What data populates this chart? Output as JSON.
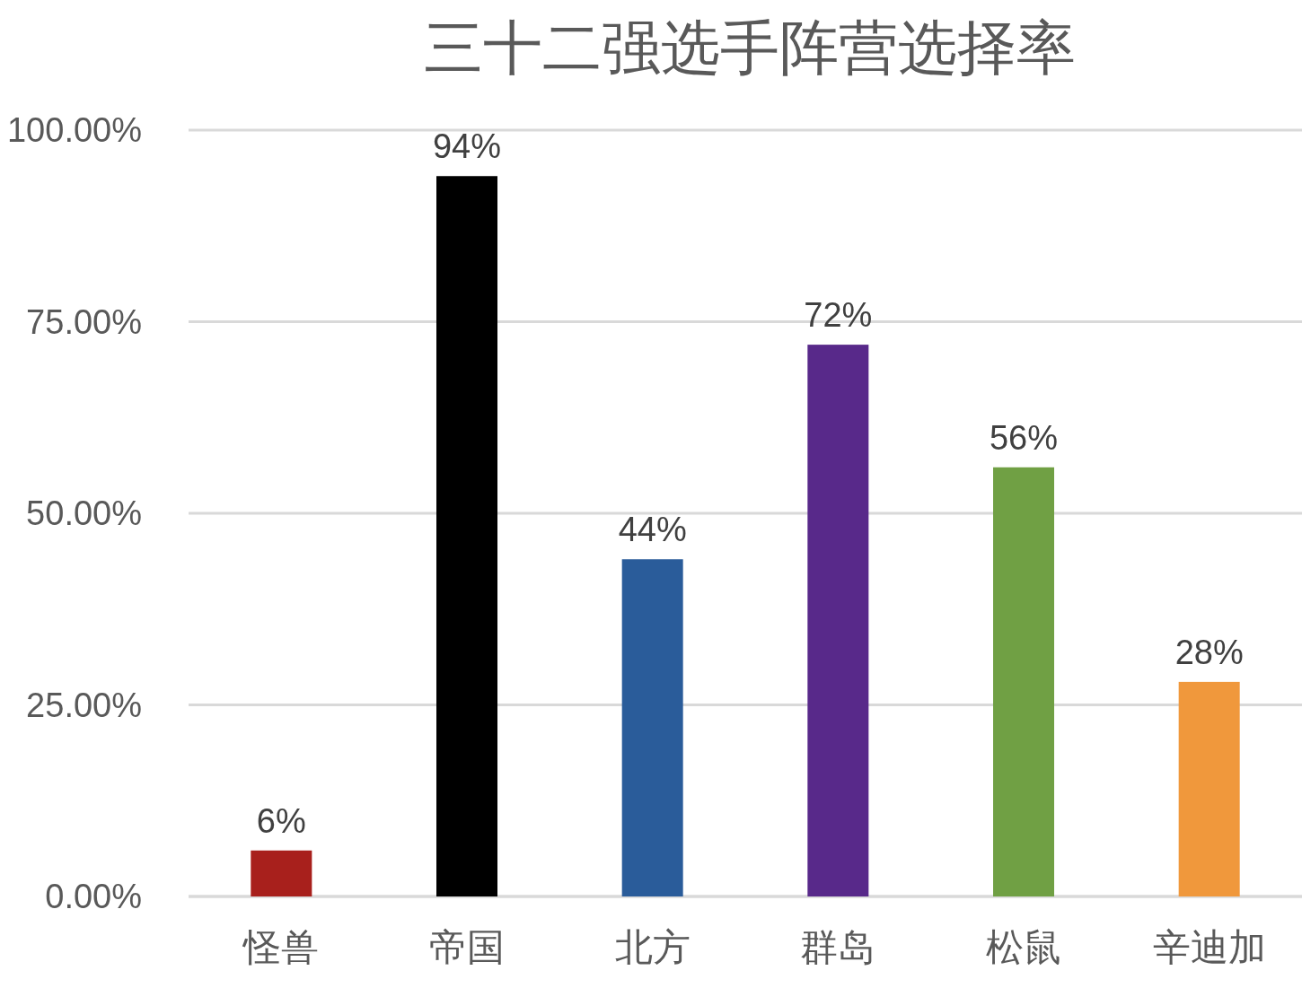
{
  "chart_data": {
    "type": "bar",
    "title": "三十二强选手阵营选择率",
    "categories": [
      "怪兽",
      "帝国",
      "北方",
      "群岛",
      "松鼠",
      "辛迪加"
    ],
    "values": [
      6,
      94,
      44,
      72,
      56,
      28
    ],
    "value_labels": [
      "6%",
      "94%",
      "44%",
      "72%",
      "56%",
      "28%"
    ],
    "colors": [
      "#a8201c",
      "#000000",
      "#2a5c9a",
      "#58298a",
      "#70a044",
      "#f0983c"
    ],
    "ylim": [
      0,
      100
    ],
    "yticks": [
      {
        "value": 0,
        "label": "0.00%"
      },
      {
        "value": 25,
        "label": "25.00%"
      },
      {
        "value": 50,
        "label": "50.00%"
      },
      {
        "value": 75,
        "label": "75.00%"
      },
      {
        "value": 100,
        "label": "100.00%"
      }
    ],
    "grid": "y"
  }
}
